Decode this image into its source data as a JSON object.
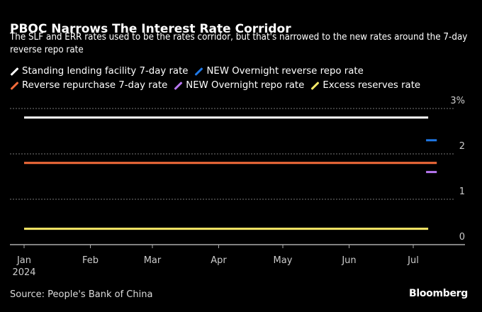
{
  "header": {
    "title": "PBOC Narrows The Interest Rate Corridor",
    "subtitle": "The SLF and ERR rates used to be the rates corridor, but that's narrowed to the new rates around the 7-day reverse repo rate"
  },
  "footer": {
    "source": "Source: People's Bank of China",
    "brand": "Bloomberg"
  },
  "chart_data": {
    "type": "line",
    "title": "PBOC Narrows The Interest Rate Corridor",
    "subtitle": "The SLF and ERR rates used to be the rates corridor, but that's narrowed to the new rates around the 7-day reverse repo rate",
    "xlabel": "",
    "ylabel": "",
    "x_range": [
      "2024-01-01",
      "2024-07-24"
    ],
    "ylim": [
      0,
      3
    ],
    "y_ticks": [
      0,
      1,
      2,
      3
    ],
    "y_tick_labels": [
      "0",
      "1",
      "2",
      "3%"
    ],
    "x_ticks": [
      "2024-01-01",
      "2024-02-01",
      "2024-03-01",
      "2024-04-01",
      "2024-05-01",
      "2024-06-01",
      "2024-07-01"
    ],
    "x_tick_labels": [
      "Jan",
      "Feb",
      "Mar",
      "Apr",
      "May",
      "Jun",
      "Jul"
    ],
    "x_year_label": "2024",
    "grid": true,
    "legend_position": "top-left",
    "series": [
      {
        "name": "Standing lending facility 7-day rate",
        "color": "#ffffff",
        "points": [
          [
            "2024-01-01",
            2.8
          ],
          [
            "2024-07-08",
            2.8
          ]
        ]
      },
      {
        "name": "NEW Overnight reverse repo rate",
        "color": "#1f78e6",
        "points": [
          [
            "2024-07-07",
            2.3
          ],
          [
            "2024-07-12",
            2.3
          ]
        ]
      },
      {
        "name": "Reverse repurchase 7-day rate",
        "color": "#f26b3a",
        "points": [
          [
            "2024-01-01",
            1.8
          ],
          [
            "2024-07-12",
            1.8
          ]
        ]
      },
      {
        "name": "NEW Overnight repo rate",
        "color": "#b777f0",
        "points": [
          [
            "2024-07-07",
            1.6
          ],
          [
            "2024-07-12",
            1.6
          ]
        ]
      },
      {
        "name": "Excess reserves rate",
        "color": "#f7e967",
        "points": [
          [
            "2024-01-01",
            0.35
          ],
          [
            "2024-07-08",
            0.35
          ]
        ]
      }
    ]
  }
}
